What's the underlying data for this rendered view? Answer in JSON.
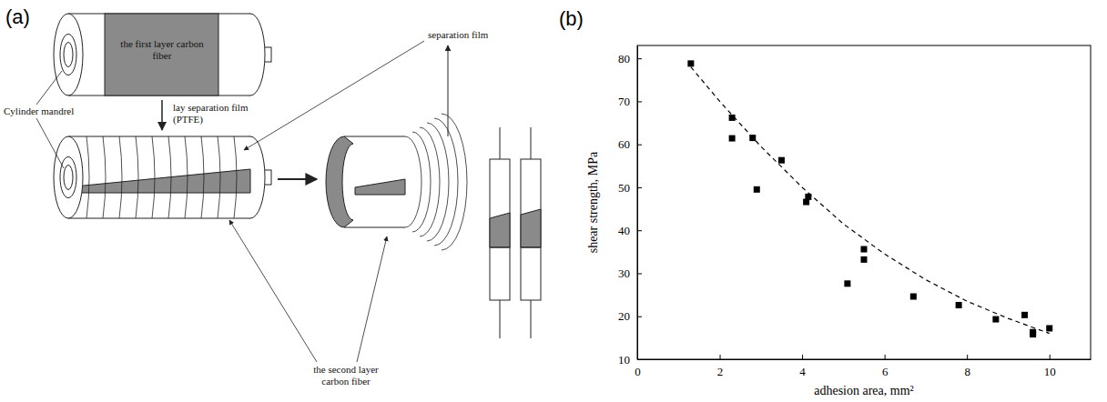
{
  "panel_labels": [
    "(a)",
    "(b)"
  ],
  "diagram": {
    "labels": {
      "first_layer": "the first layer carbon fiber",
      "mandrel": "Cylinder mandrel",
      "lay_film": "lay separation film (PTFE)",
      "separation_film": "separation film",
      "second_layer": "the second layer carbon fiber"
    }
  },
  "chart_data": {
    "type": "scatter",
    "x_label": "adhesion area, mm²",
    "y_label": "shear strength, MPa",
    "xlim": [
      0,
      11
    ],
    "ylim": [
      10,
      83
    ],
    "xticks": [
      0,
      2,
      4,
      6,
      8,
      10
    ],
    "yticks": [
      10,
      20,
      30,
      40,
      50,
      60,
      70,
      80
    ],
    "grid": false,
    "series": [
      {
        "type": "scatter",
        "marker": "square",
        "color": "#000000",
        "x": [
          1.3,
          2.3,
          2.3,
          2.8,
          2.9,
          3.5,
          4.1,
          4.15,
          5.1,
          5.5,
          5.5,
          6.7,
          7.8,
          8.7,
          9.4,
          9.6,
          9.6,
          10.0
        ],
        "values": [
          78.8,
          66.2,
          61.4,
          61.5,
          49.5,
          56.3,
          46.6,
          47.8,
          27.6,
          35.6,
          33.2,
          24.6,
          22.6,
          19.3,
          20.3,
          16.3,
          15.8,
          17.2
        ]
      },
      {
        "type": "line",
        "line_style": "dashed",
        "color": "#000000",
        "x": [
          1.3,
          2,
          3,
          4,
          5,
          6,
          7,
          8,
          9,
          10
        ],
        "values": [
          78,
          70,
          59.5,
          50,
          41.5,
          34.5,
          28.5,
          23.5,
          19.5,
          16
        ]
      }
    ]
  }
}
